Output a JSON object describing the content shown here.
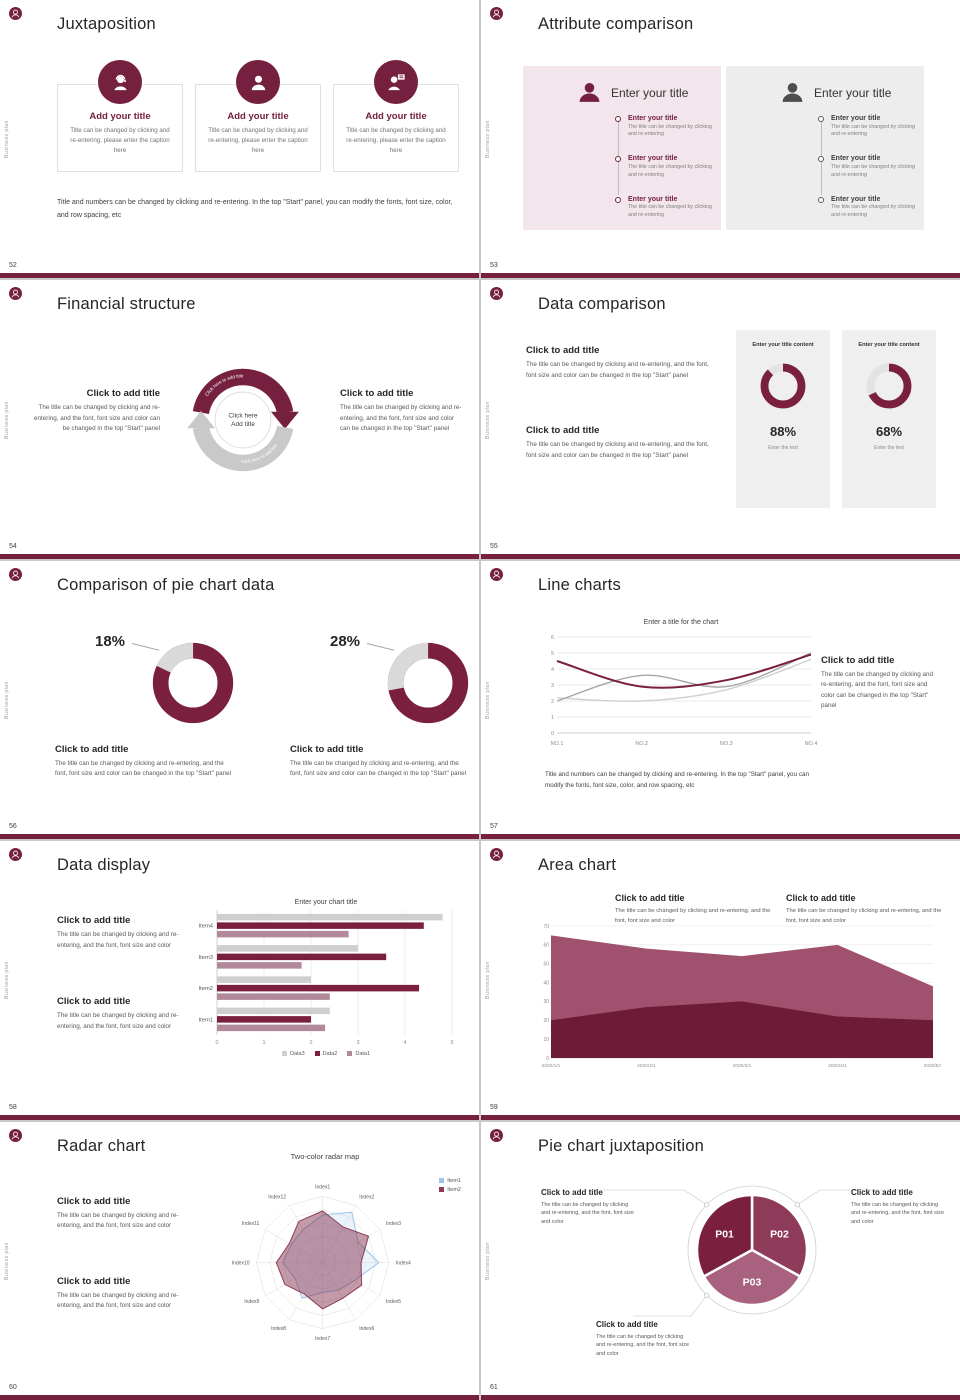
{
  "common": {
    "vertical_text": "Business plan",
    "accent": "#76203f"
  },
  "slides": [
    {
      "number": "52",
      "title": "Juxtaposition",
      "items": [
        {
          "title": "Add your title",
          "caption": "Title can be changed by clicking and re-entering, please enter the caption here"
        },
        {
          "title": "Add your title",
          "caption": "Title can be changed by clicking and re-entering, please enter the caption here"
        },
        {
          "title": "Add your title",
          "caption": "Title can be changed by clicking and re-entering, please enter the caption here"
        }
      ],
      "note": "Title and numbers can be changed by clicking and re-entering. In the top \"Start\" panel, you can modify the fonts, font size, color, and row spacing, etc"
    },
    {
      "number": "53",
      "title": "Attribute comparison",
      "panels": [
        {
          "heading": "Enter your title",
          "entries": [
            {
              "title": "Enter your title",
              "caption": "The title can be changed by clicking and re-entering"
            },
            {
              "title": "Enter your title",
              "caption": "The title can be changed by clicking and re-entering"
            },
            {
              "title": "Enter your title",
              "caption": "The title can be changed by clicking and re-entering"
            }
          ]
        },
        {
          "heading": "Enter your title",
          "entries": [
            {
              "title": "Enter your title",
              "caption": "The title can be changed by clicking and re-entering"
            },
            {
              "title": "Enter your title",
              "caption": "The title can be changed by clicking and re-entering"
            },
            {
              "title": "Enter your title",
              "caption": "The title can be changed by clicking and re-entering"
            }
          ]
        }
      ]
    },
    {
      "number": "54",
      "title": "Financial structure",
      "left": {
        "title": "Click to add title",
        "body": "The title can be changed by clicking and re-entering, and the font, font size and color can be changed in the top \"Start\" panel"
      },
      "right": {
        "title": "Click to add title",
        "body": "The title can be changed by clicking and re-entering, and the font, font size and color can be changed in the top \"Start\" panel"
      }
    },
    {
      "number": "55",
      "title": "Data comparison",
      "blocks": [
        {
          "title": "Click to add title",
          "body": "The title can be changed by clicking and re-entering, and the font, font size and color can be changed in the top \"Start\" panel"
        },
        {
          "title": "Click to add title",
          "body": "The title can be changed by clicking and re-entering, and the font, font size and color can be changed in the top \"Start\" panel"
        }
      ],
      "cards": [
        {
          "heading": "Enter your title content",
          "percent": "88%",
          "footer": "Enter the text"
        },
        {
          "heading": "Enter your title content",
          "percent": "68%",
          "footer": "Enter the text"
        }
      ]
    },
    {
      "number": "56",
      "title": "Comparison of pie chart data",
      "groups": [
        {
          "percent_label": "18%",
          "title": "Click to add title",
          "body": "The title can be changed by clicking and re-entering, and the font, font size and color can be changed in the top \"Start\" panel"
        },
        {
          "percent_label": "28%",
          "title": "Click to add title",
          "body": "The title can be changed by clicking and re-entering, and the font, font size and color can be changed in the top \"Start\" panel"
        }
      ]
    },
    {
      "number": "57",
      "title": "Line charts",
      "right": {
        "title": "Click to add title",
        "body": "The title can be changed by clicking and re-entering, and the font, font size and color can be changed in the top \"Start\" panel"
      },
      "note": "Title and numbers can be changed by clicking and re-entering. In the top \"Start\" panel, you can modify the fonts, font size, color, and row spacing, etc"
    },
    {
      "number": "58",
      "title": "Data display",
      "blocks": [
        {
          "title": "Click to add title",
          "body": "The title can be changed by clicking and re-entering, and the font, font size and color"
        },
        {
          "title": "Click to add title",
          "body": "The title can be changed by clicking and re-entering, and the font, font size and color"
        }
      ]
    },
    {
      "number": "59",
      "title": "Area chart",
      "blocks": [
        {
          "title": "Click to add title",
          "body": "The title can be changed by clicking and re-entering, and the font, font size and color"
        },
        {
          "title": "Click to add title",
          "body": "The title can be changed by clicking and re-entering, and the font, font size and color"
        }
      ]
    },
    {
      "number": "60",
      "title": "Radar chart",
      "blocks": [
        {
          "title": "Click to add title",
          "body": "The title can be changed by clicking and re-entering, and the font, font size and color"
        },
        {
          "title": "Click to add title",
          "body": "The title can be changed by clicking and re-entering, and the font, font size and color"
        }
      ]
    },
    {
      "number": "61",
      "title": "Pie chart juxtaposition",
      "blocks": [
        {
          "title": "Click to add title",
          "body": "The title can be changed by clicking and re-entering, and the font, font size and color"
        },
        {
          "title": "Click to add title",
          "body": "The title can be changed by clicking and re-entering, and the font, font size and color"
        },
        {
          "title": "Click to add title",
          "body": "The title can be changed by clicking and re-entering, and the font, font size and color"
        }
      ]
    }
  ],
  "chart_data": [
    {
      "id": "donut88",
      "renderer": "donut",
      "type": "pie",
      "subtype": "donut",
      "mode": "fill",
      "value": 88,
      "label": "88%",
      "color": "#7a1f3d",
      "track": "#e3e3e3",
      "thickness": 14
    },
    {
      "id": "donut68",
      "renderer": "donut",
      "type": "pie",
      "subtype": "donut",
      "mode": "fill",
      "value": 68,
      "label": "68%",
      "color": "#7a1f3d",
      "track": "#e3e3e3",
      "thickness": 14
    },
    {
      "id": "donut18",
      "renderer": "donut",
      "type": "pie",
      "subtype": "donut",
      "mode": "gap",
      "value": 18,
      "label": "18%",
      "color": "#7a1f3d",
      "track": "#d9d9d9",
      "thickness": 16
    },
    {
      "id": "donut28",
      "renderer": "donut",
      "type": "pie",
      "subtype": "donut",
      "mode": "gap",
      "value": 28,
      "label": "28%",
      "color": "#7a1f3d",
      "track": "#d9d9d9",
      "thickness": 16
    },
    {
      "id": "line57",
      "renderer": "line",
      "type": "line",
      "title": "Enter a title for the chart",
      "x": [
        "NO.1",
        "NO.2",
        "NO.3",
        "NO.4"
      ],
      "ylim": [
        0,
        6
      ],
      "ytick": 1,
      "series": [
        {
          "color": "#d0cece",
          "width": 1.4,
          "values": [
            2.2,
            2.0,
            2.7,
            4.6
          ]
        },
        {
          "color": "#a6a6a6",
          "width": 1.4,
          "values": [
            2.0,
            3.6,
            2.9,
            5.0
          ]
        },
        {
          "color": "#7a1f3d",
          "width": 2.0,
          "values": [
            4.5,
            2.9,
            3.3,
            4.9
          ]
        }
      ]
    },
    {
      "id": "bars58",
      "renderer": "bar",
      "type": "bar",
      "orientation": "horizontal",
      "title": "Enter your chart title",
      "categories": [
        "Item1",
        "Item2",
        "Item3",
        "Item4"
      ],
      "xlim": [
        0,
        5
      ],
      "series": [
        {
          "name": "Data3",
          "color": "#d0cece",
          "values": [
            2.4,
            2.0,
            3.0,
            4.8
          ]
        },
        {
          "name": "Data2",
          "color": "#7a1f3d",
          "values": [
            2.0,
            4.3,
            3.6,
            4.4
          ]
        },
        {
          "name": "Data1",
          "color": "#b2889b",
          "values": [
            2.3,
            2.4,
            1.8,
            2.8
          ]
        }
      ]
    },
    {
      "id": "area59",
      "renderer": "area",
      "type": "area",
      "x": [
        "2020/1/1",
        "2020/2/1",
        "2020/3/1",
        "2020/4/1",
        "2020/5/1"
      ],
      "ylim": [
        0,
        70
      ],
      "ytick": 10,
      "series": [
        {
          "name": "Series2",
          "color": "#a0516e",
          "values": [
            65,
            58,
            54,
            60,
            38
          ]
        },
        {
          "name": "Series1",
          "color": "#6d1b37",
          "values": [
            20,
            27,
            30,
            22,
            20
          ]
        }
      ]
    },
    {
      "id": "radar60",
      "renderer": "radar",
      "type": "radar",
      "title": "Two-color radar map",
      "max": 100,
      "axes": [
        "Index1",
        "Index2",
        "Index3",
        "Index4",
        "Index5",
        "Index6",
        "Index7",
        "Index8",
        "Index9",
        "Index10",
        "Index11",
        "Index12"
      ],
      "series": [
        {
          "name": "Item1",
          "color": "#9dc3e6",
          "fill": "rgba(189,215,238,0.30)",
          "values": [
            72,
            88,
            62,
            85,
            55,
            48,
            45,
            62,
            48,
            60,
            55,
            58
          ]
        },
        {
          "name": "Item2",
          "color": "#8c3a57",
          "fill": "rgba(122,31,61,0.45)",
          "values": [
            78,
            62,
            80,
            58,
            68,
            62,
            70,
            55,
            66,
            70,
            58,
            72
          ]
        }
      ]
    },
    {
      "id": "pie61",
      "renderer": "pie3",
      "type": "pie",
      "slices": [
        {
          "label": "P02",
          "value": 33,
          "color": "#8e3a59"
        },
        {
          "label": "P03",
          "value": 34,
          "color": "#a8617e"
        },
        {
          "label": "P01",
          "value": 33,
          "color": "#7a1f3d"
        }
      ]
    },
    {
      "id": "cycle54",
      "renderer": "cycle",
      "type": "pie",
      "subtype": "cycle-arrows",
      "center_lines": [
        "Click here",
        "Add title"
      ],
      "arc_label": "Click here to add title",
      "colors": {
        "top": "#76203f",
        "bottom": "#c9c9c9"
      }
    }
  ]
}
